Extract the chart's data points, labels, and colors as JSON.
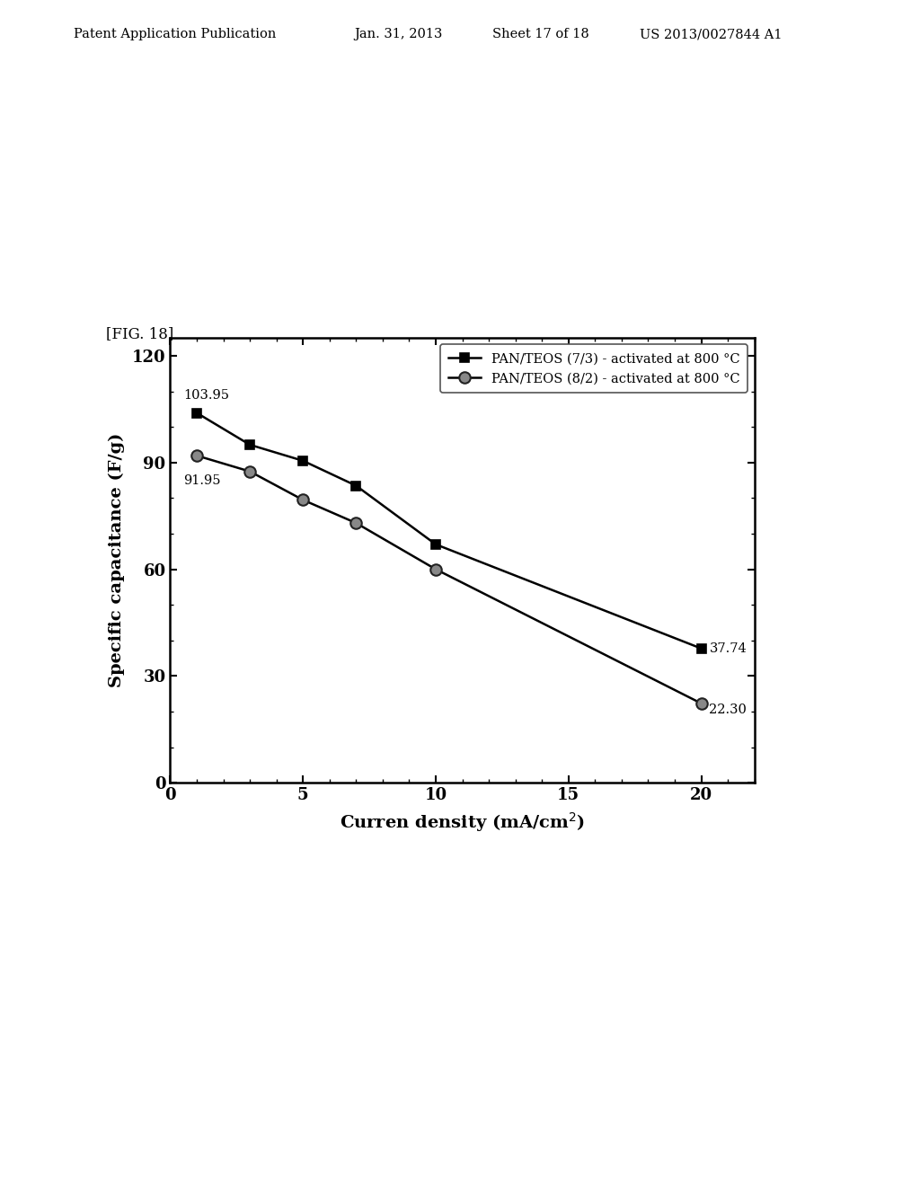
{
  "series1_x": [
    1,
    3,
    5,
    7,
    10,
    20
  ],
  "series1_y": [
    103.95,
    95.0,
    90.5,
    83.5,
    67.0,
    37.74
  ],
  "series2_x": [
    1,
    3,
    5,
    7,
    10,
    20
  ],
  "series2_y": [
    91.95,
    87.5,
    79.5,
    73.0,
    60.0,
    22.3
  ],
  "series1_label": "PAN/TEOS (7/3) - activated at 800 °C",
  "series2_label": "PAN/TEOS (8/2) - activated at 800 °C",
  "series1_color": "#000000",
  "series2_color": "#000000",
  "marker1": "s",
  "marker2": "o",
  "marker1_facecolor": "#000000",
  "marker2_facecolor": "#888888",
  "marker2_edgecolor": "#222222",
  "xlabel": "Curren density (mA/cm$^2$)",
  "ylabel": "Specific capacitance (F/g)",
  "xlim": [
    0,
    22
  ],
  "ylim": [
    0,
    125
  ],
  "xticks": [
    0,
    5,
    10,
    15,
    20
  ],
  "yticks": [
    0,
    30,
    60,
    90,
    120
  ],
  "fig_label": "[FIG. 18]",
  "annot_s1_start": "103.95",
  "annot_s1_end": "37.74",
  "annot_s2_start": "91.95",
  "annot_s2_end": "22.30",
  "background_color": "#ffffff",
  "header_left": "Patent Application Publication",
  "header_mid1": "Jan. 31, 2013",
  "header_mid2": "Sheet 17 of 18",
  "header_right": "US 2013/0027844 A1"
}
